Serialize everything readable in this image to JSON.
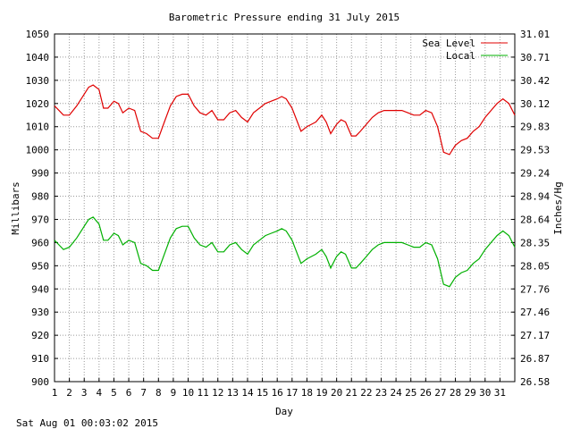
{
  "chart_data": {
    "type": "line",
    "title": "Barometric Pressure ending 31 July 2015",
    "xlabel": "Day",
    "ylabel_left": "Millibars",
    "ylabel_right": "Inches/Hg",
    "footer": "Sat Aug 01 00:03:02 2015",
    "xlim": [
      1,
      32
    ],
    "ylim": [
      900,
      1050
    ],
    "x_ticks": [
      "1",
      "2",
      "3",
      "4",
      "5",
      "6",
      "7",
      "8",
      "9",
      "10",
      "11",
      "12",
      "13",
      "14",
      "15",
      "16",
      "17",
      "18",
      "19",
      "20",
      "21",
      "22",
      "23",
      "24",
      "25",
      "26",
      "27",
      "28",
      "29",
      "30",
      "31"
    ],
    "y_ticks_left": [
      "900",
      "910",
      "920",
      "930",
      "940",
      "950",
      "960",
      "970",
      "980",
      "990",
      "1000",
      "1010",
      "1020",
      "1030",
      "1040",
      "1050"
    ],
    "y_ticks_right": [
      "26.58",
      "26.87",
      "27.17",
      "27.46",
      "27.76",
      "28.05",
      "28.35",
      "28.64",
      "28.94",
      "29.24",
      "29.53",
      "29.83",
      "30.12",
      "30.42",
      "30.71",
      "31.01"
    ],
    "grid": true,
    "legend_position": "top-right",
    "series": [
      {
        "name": "Sea Level",
        "color": "#e00000",
        "x": [
          1.0,
          1.3,
          1.6,
          2.0,
          2.5,
          3.0,
          3.3,
          3.6,
          4.0,
          4.3,
          4.6,
          5.0,
          5.3,
          5.6,
          6.0,
          6.4,
          6.8,
          7.2,
          7.6,
          8.0,
          8.4,
          8.8,
          9.2,
          9.6,
          10.0,
          10.4,
          10.8,
          11.2,
          11.6,
          12.0,
          12.4,
          12.8,
          13.2,
          13.6,
          14.0,
          14.4,
          14.8,
          15.2,
          15.6,
          16.0,
          16.3,
          16.6,
          17.0,
          17.3,
          17.6,
          18.0,
          18.3,
          18.6,
          19.0,
          19.3,
          19.6,
          20.0,
          20.3,
          20.6,
          21.0,
          21.3,
          21.6,
          22.0,
          22.4,
          22.8,
          23.2,
          23.6,
          24.0,
          24.4,
          24.8,
          25.2,
          25.6,
          26.0,
          26.4,
          26.8,
          27.2,
          27.6,
          28.0,
          28.4,
          28.8,
          29.2,
          29.6,
          30.0,
          30.4,
          30.8,
          31.2,
          31.6,
          32.0
        ],
        "y": [
          1019,
          1017,
          1015,
          1015,
          1019,
          1024,
          1027,
          1028,
          1026,
          1018,
          1018,
          1021,
          1020,
          1016,
          1018,
          1017,
          1008,
          1007,
          1005,
          1005,
          1012,
          1019,
          1023,
          1024,
          1024,
          1019,
          1016,
          1015,
          1017,
          1013,
          1013,
          1016,
          1017,
          1014,
          1012,
          1016,
          1018,
          1020,
          1021,
          1022,
          1023,
          1022,
          1018,
          1013,
          1008,
          1010,
          1011,
          1012,
          1015,
          1012,
          1007,
          1011,
          1013,
          1012,
          1006,
          1006,
          1008,
          1011,
          1014,
          1016,
          1017,
          1017,
          1017,
          1017,
          1016,
          1015,
          1015,
          1017,
          1016,
          1010,
          999,
          998,
          1002,
          1004,
          1005,
          1008,
          1010,
          1014,
          1017,
          1020,
          1022,
          1020,
          1015
        ]
      },
      {
        "name": "Local",
        "color": "#00b000",
        "x": [
          1.0,
          1.3,
          1.6,
          2.0,
          2.5,
          3.0,
          3.3,
          3.6,
          4.0,
          4.3,
          4.6,
          5.0,
          5.3,
          5.6,
          6.0,
          6.4,
          6.8,
          7.2,
          7.6,
          8.0,
          8.4,
          8.8,
          9.2,
          9.6,
          10.0,
          10.4,
          10.8,
          11.2,
          11.6,
          12.0,
          12.4,
          12.8,
          13.2,
          13.6,
          14.0,
          14.4,
          14.8,
          15.2,
          15.6,
          16.0,
          16.3,
          16.6,
          17.0,
          17.3,
          17.6,
          18.0,
          18.3,
          18.6,
          19.0,
          19.3,
          19.6,
          20.0,
          20.3,
          20.6,
          21.0,
          21.3,
          21.6,
          22.0,
          22.4,
          22.8,
          23.2,
          23.6,
          24.0,
          24.4,
          24.8,
          25.2,
          25.6,
          26.0,
          26.4,
          26.8,
          27.2,
          27.6,
          28.0,
          28.4,
          28.8,
          29.2,
          29.6,
          30.0,
          30.4,
          30.8,
          31.2,
          31.6,
          32.0
        ],
        "y": [
          961,
          959,
          957,
          958,
          962,
          967,
          970,
          971,
          968,
          961,
          961,
          964,
          963,
          959,
          961,
          960,
          951,
          950,
          948,
          948,
          955,
          962,
          966,
          967,
          967,
          962,
          959,
          958,
          960,
          956,
          956,
          959,
          960,
          957,
          955,
          959,
          961,
          963,
          964,
          965,
          966,
          965,
          961,
          956,
          951,
          953,
          954,
          955,
          957,
          954,
          949,
          954,
          956,
          955,
          949,
          949,
          951,
          954,
          957,
          959,
          960,
          960,
          960,
          960,
          959,
          958,
          958,
          960,
          959,
          953,
          942,
          941,
          945,
          947,
          948,
          951,
          953,
          957,
          960,
          963,
          965,
          963,
          958
        ]
      }
    ]
  }
}
